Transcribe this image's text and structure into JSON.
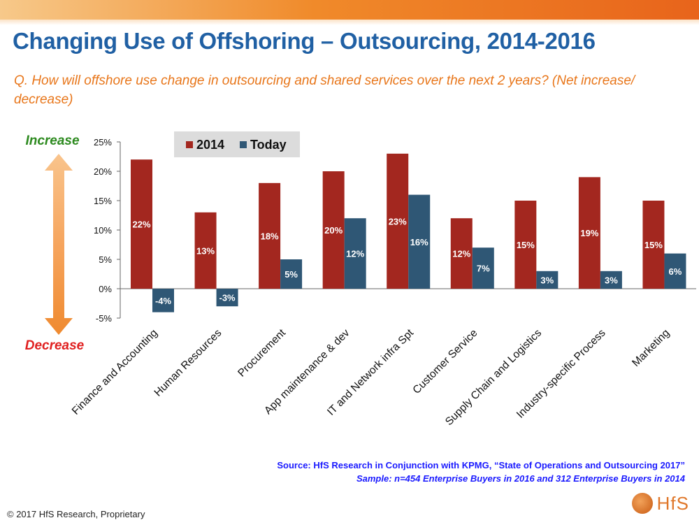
{
  "title": "Changing Use of Offshoring – Outsourcing, 2014-2016",
  "question": "Q. How will offshore use change in outsourcing and shared services over the next 2 years? (Net increase/ decrease)",
  "arrow": {
    "top_label": "Increase",
    "bottom_label": "Decrease",
    "top_color": "#2d8a1f",
    "bottom_color": "#e02020"
  },
  "chart_data": {
    "type": "bar",
    "categories": [
      "Finance and Accounting",
      "Human Resources",
      "Procurement",
      "App maintenance & dev",
      "IT and Network infra Spt",
      "Customer Service",
      "Supply Chain and Logistics",
      "Industry-specific Process",
      "Marketing"
    ],
    "series": [
      {
        "name": "2014",
        "color": "#a3271f",
        "values": [
          22,
          13,
          18,
          20,
          23,
          12,
          15,
          19,
          15
        ]
      },
      {
        "name": "Today",
        "color": "#2f5775",
        "values": [
          -4,
          -3,
          5,
          12,
          16,
          7,
          3,
          3,
          6
        ]
      }
    ],
    "ylim": [
      -5,
      25
    ],
    "yticks": [
      25,
      20,
      15,
      10,
      5,
      0,
      -5
    ],
    "ytick_labels": [
      "25%",
      "20%",
      "15%",
      "10%",
      "5%",
      "0%",
      "-5%"
    ],
    "value_suffix": "%",
    "legend_position": "top-left",
    "grid": false
  },
  "source": {
    "line1": "Source: HfS Research in Conjunction with KPMG, “State of Operations and Outsourcing 2017”",
    "line2": "Sample: n=454 Enterprise Buyers in 2016 and 312 Enterprise Buyers in 2014"
  },
  "copyright": "© 2017 HfS Research, Proprietary",
  "logo": {
    "text": "HfS"
  }
}
